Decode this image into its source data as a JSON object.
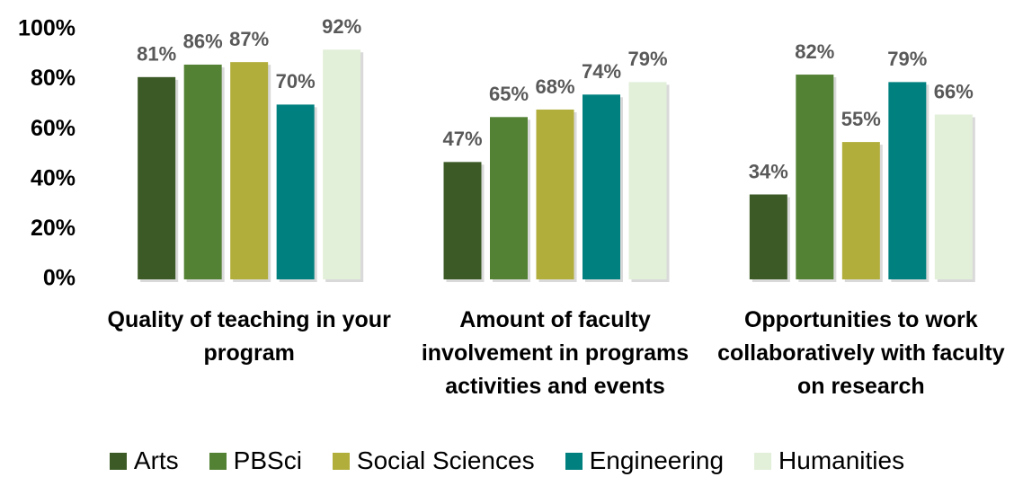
{
  "chart_data": {
    "type": "bar",
    "categories": [
      "Quality of teaching in your program",
      "Amount of faculty involvement in programs activities and events",
      "Opportunities to work collaboratively with faculty on research"
    ],
    "series": [
      {
        "name": "Arts",
        "color": "#3b5a25",
        "values": [
          81,
          47,
          34
        ],
        "value_labels": [
          "81%",
          "47%",
          "34%"
        ]
      },
      {
        "name": "PBSci",
        "color": "#548235",
        "values": [
          86,
          65,
          82
        ],
        "value_labels": [
          "86%",
          "65%",
          "82%"
        ]
      },
      {
        "name": "Social Sciences",
        "color": "#b1ae3c",
        "values": [
          87,
          68,
          55
        ],
        "value_labels": [
          "87%",
          "68%",
          "55%"
        ]
      },
      {
        "name": "Engineering",
        "color": "#00807f",
        "values": [
          70,
          74,
          79
        ],
        "value_labels": [
          "70%",
          "74%",
          "79%"
        ]
      },
      {
        "name": "Humanities",
        "color": "#e2efd9",
        "values": [
          92,
          79,
          66
        ],
        "value_labels": [
          "92%",
          "79%",
          "66%"
        ]
      }
    ],
    "ylim": [
      0,
      100
    ],
    "yticks": [
      {
        "value": 0,
        "label": "0%"
      },
      {
        "value": 20,
        "label": "20%"
      },
      {
        "value": 40,
        "label": "40%"
      },
      {
        "value": 60,
        "label": "60%"
      },
      {
        "value": 80,
        "label": "80%"
      },
      {
        "value": 100,
        "label": "100%"
      }
    ],
    "grid": false,
    "legend": "bottom"
  }
}
